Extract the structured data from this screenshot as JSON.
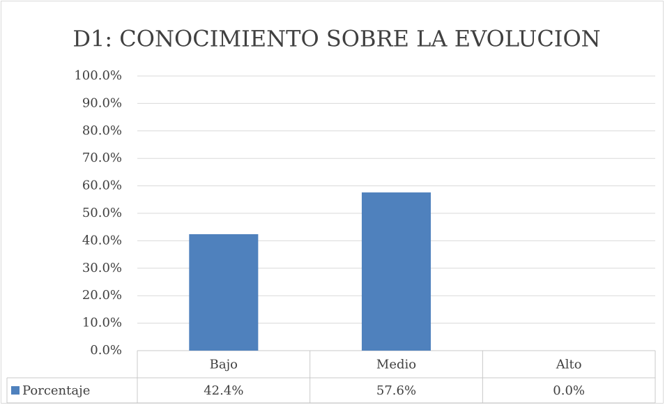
{
  "chart_data": {
    "type": "bar",
    "title": "D1:  CONOCIMIENTO SOBRE LA EVOLUCION",
    "categories": [
      "Bajo",
      "Medio",
      "Alto"
    ],
    "series": [
      {
        "name": "Porcentaje",
        "color": "#4f81bd",
        "values": [
          42.4,
          57.6,
          0.0
        ],
        "value_labels": [
          "42.4%",
          "57.6%",
          "0.0%"
        ]
      }
    ],
    "ylim": [
      0,
      100
    ],
    "yticks": [
      {
        "value": 0,
        "label": "0.0%"
      },
      {
        "value": 10,
        "label": "10.0%"
      },
      {
        "value": 20,
        "label": "20.0%"
      },
      {
        "value": 30,
        "label": "30.0%"
      },
      {
        "value": 40,
        "label": "40.0%"
      },
      {
        "value": 50,
        "label": "50.0%"
      },
      {
        "value": 60,
        "label": "60.0%"
      },
      {
        "value": 70,
        "label": "70.0%"
      },
      {
        "value": 80,
        "label": "80.0%"
      },
      {
        "value": 90,
        "label": "90.0%"
      },
      {
        "value": 100,
        "label": "100.0%"
      }
    ],
    "grid": true
  }
}
